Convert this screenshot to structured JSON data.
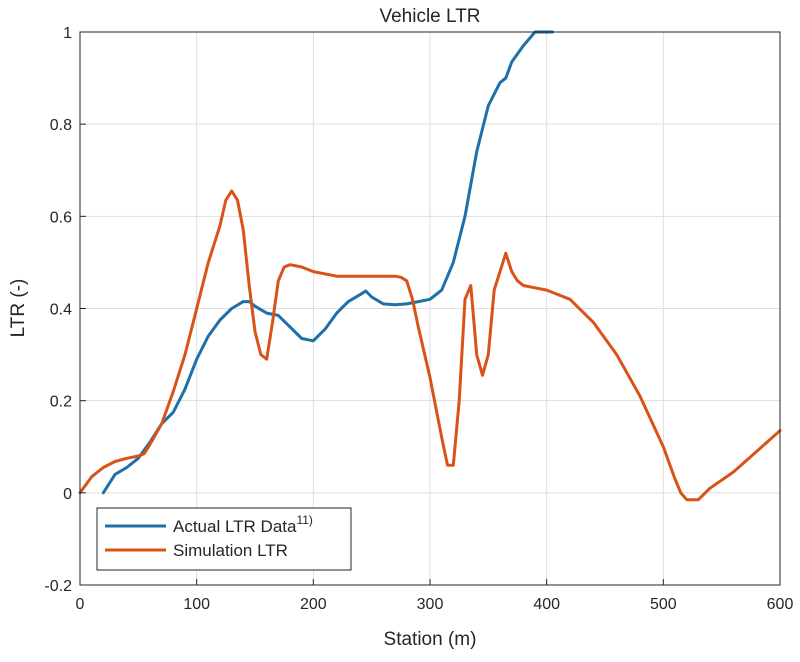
{
  "chart_data": {
    "type": "line",
    "title": "Vehicle LTR",
    "xlabel": "Station (m)",
    "ylabel": "LTR (-)",
    "xlim": [
      0,
      600
    ],
    "ylim": [
      -0.2,
      1
    ],
    "xticks": [
      "0",
      "100",
      "200",
      "300",
      "400",
      "500",
      "600"
    ],
    "yticks": [
      "-0.2",
      "0",
      "0.2",
      "0.4",
      "0.6",
      "0.8",
      "1"
    ],
    "grid": true,
    "legend_position": "bottom-left",
    "series": [
      {
        "name": "Actual LTR Data",
        "name_sup": "11)",
        "color": "#1f6fa8",
        "x": [
          20,
          30,
          40,
          50,
          60,
          70,
          80,
          90,
          100,
          110,
          120,
          130,
          140,
          145,
          150,
          160,
          170,
          180,
          190,
          200,
          210,
          220,
          230,
          240,
          245,
          250,
          260,
          270,
          280,
          290,
          300,
          310,
          320,
          330,
          340,
          350,
          360,
          365,
          370,
          380,
          390,
          395,
          405
        ],
        "y": [
          0.0,
          0.04,
          0.055,
          0.075,
          0.11,
          0.15,
          0.175,
          0.225,
          0.29,
          0.34,
          0.375,
          0.4,
          0.415,
          0.415,
          0.405,
          0.39,
          0.385,
          0.36,
          0.335,
          0.33,
          0.355,
          0.39,
          0.415,
          0.43,
          0.438,
          0.425,
          0.41,
          0.408,
          0.41,
          0.415,
          0.42,
          0.44,
          0.5,
          0.6,
          0.74,
          0.84,
          0.89,
          0.9,
          0.935,
          0.97,
          1.0,
          1.0,
          1.0
        ]
      },
      {
        "name": "Simulation LTR",
        "color": "#d95319",
        "x": [
          0,
          10,
          20,
          30,
          40,
          50,
          55,
          60,
          70,
          80,
          90,
          100,
          110,
          120,
          125,
          130,
          135,
          140,
          145,
          150,
          155,
          160,
          165,
          170,
          175,
          180,
          190,
          200,
          220,
          240,
          260,
          270,
          275,
          280,
          285,
          290,
          300,
          310,
          315,
          320,
          325,
          330,
          335,
          340,
          345,
          350,
          355,
          360,
          365,
          370,
          375,
          380,
          390,
          400,
          420,
          440,
          460,
          480,
          500,
          510,
          515,
          520,
          530,
          540,
          560,
          580,
          600
        ],
        "y": [
          0.0,
          0.035,
          0.055,
          0.068,
          0.075,
          0.08,
          0.085,
          0.105,
          0.15,
          0.22,
          0.3,
          0.4,
          0.5,
          0.58,
          0.635,
          0.655,
          0.635,
          0.57,
          0.45,
          0.35,
          0.3,
          0.29,
          0.37,
          0.46,
          0.49,
          0.495,
          0.49,
          0.48,
          0.47,
          0.47,
          0.47,
          0.47,
          0.468,
          0.46,
          0.42,
          0.36,
          0.25,
          0.12,
          0.06,
          0.06,
          0.2,
          0.42,
          0.45,
          0.3,
          0.255,
          0.3,
          0.44,
          0.48,
          0.52,
          0.48,
          0.46,
          0.45,
          0.445,
          0.44,
          0.42,
          0.37,
          0.3,
          0.21,
          0.1,
          0.03,
          0.0,
          -0.015,
          -0.015,
          0.01,
          0.045,
          0.09,
          0.135
        ]
      }
    ]
  }
}
